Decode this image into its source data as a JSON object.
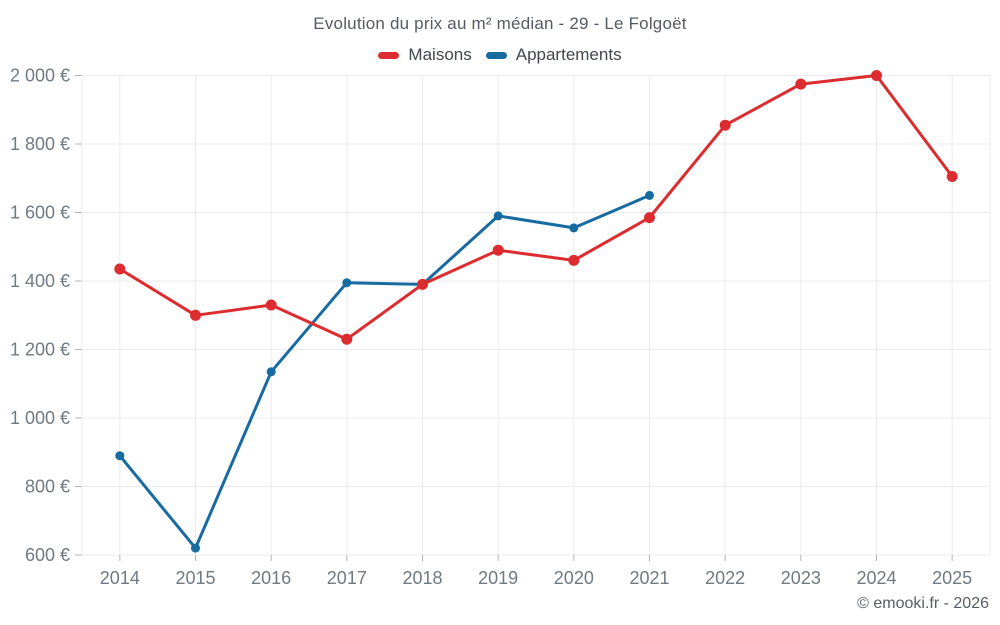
{
  "title": "Evolution du prix au m² médian - 29 - Le Folgoët",
  "copyright": "© emooki.fr - 2026",
  "chart_data": {
    "type": "line",
    "title": "Evolution du prix au m² médian - 29 - Le Folgoët",
    "categories": [
      "2014",
      "2015",
      "2016",
      "2017",
      "2018",
      "2019",
      "2020",
      "2021",
      "2022",
      "2023",
      "2024",
      "2025"
    ],
    "series": [
      {
        "name": "Maisons",
        "color": "#dd2c2f",
        "values": [
          1435,
          1300,
          1330,
          1230,
          1390,
          1490,
          1460,
          1585,
          1855,
          1975,
          2000,
          1705
        ]
      },
      {
        "name": "Appartements",
        "color": "#186ba1",
        "values": [
          890,
          620,
          1135,
          1395,
          1390,
          1590,
          1555,
          1650,
          null,
          null,
          null,
          null
        ]
      }
    ],
    "xlabel": "",
    "ylabel": "",
    "ylim": [
      600,
      2000
    ],
    "ytick_step": 200,
    "ytick_labels": [
      "600 €",
      "800 €",
      "1 000 €",
      "1 200 €",
      "1 400 €",
      "1 600 €",
      "1 800 €",
      "2 000 €"
    ],
    "grid": true,
    "legend_position": "top",
    "currency": "€"
  }
}
